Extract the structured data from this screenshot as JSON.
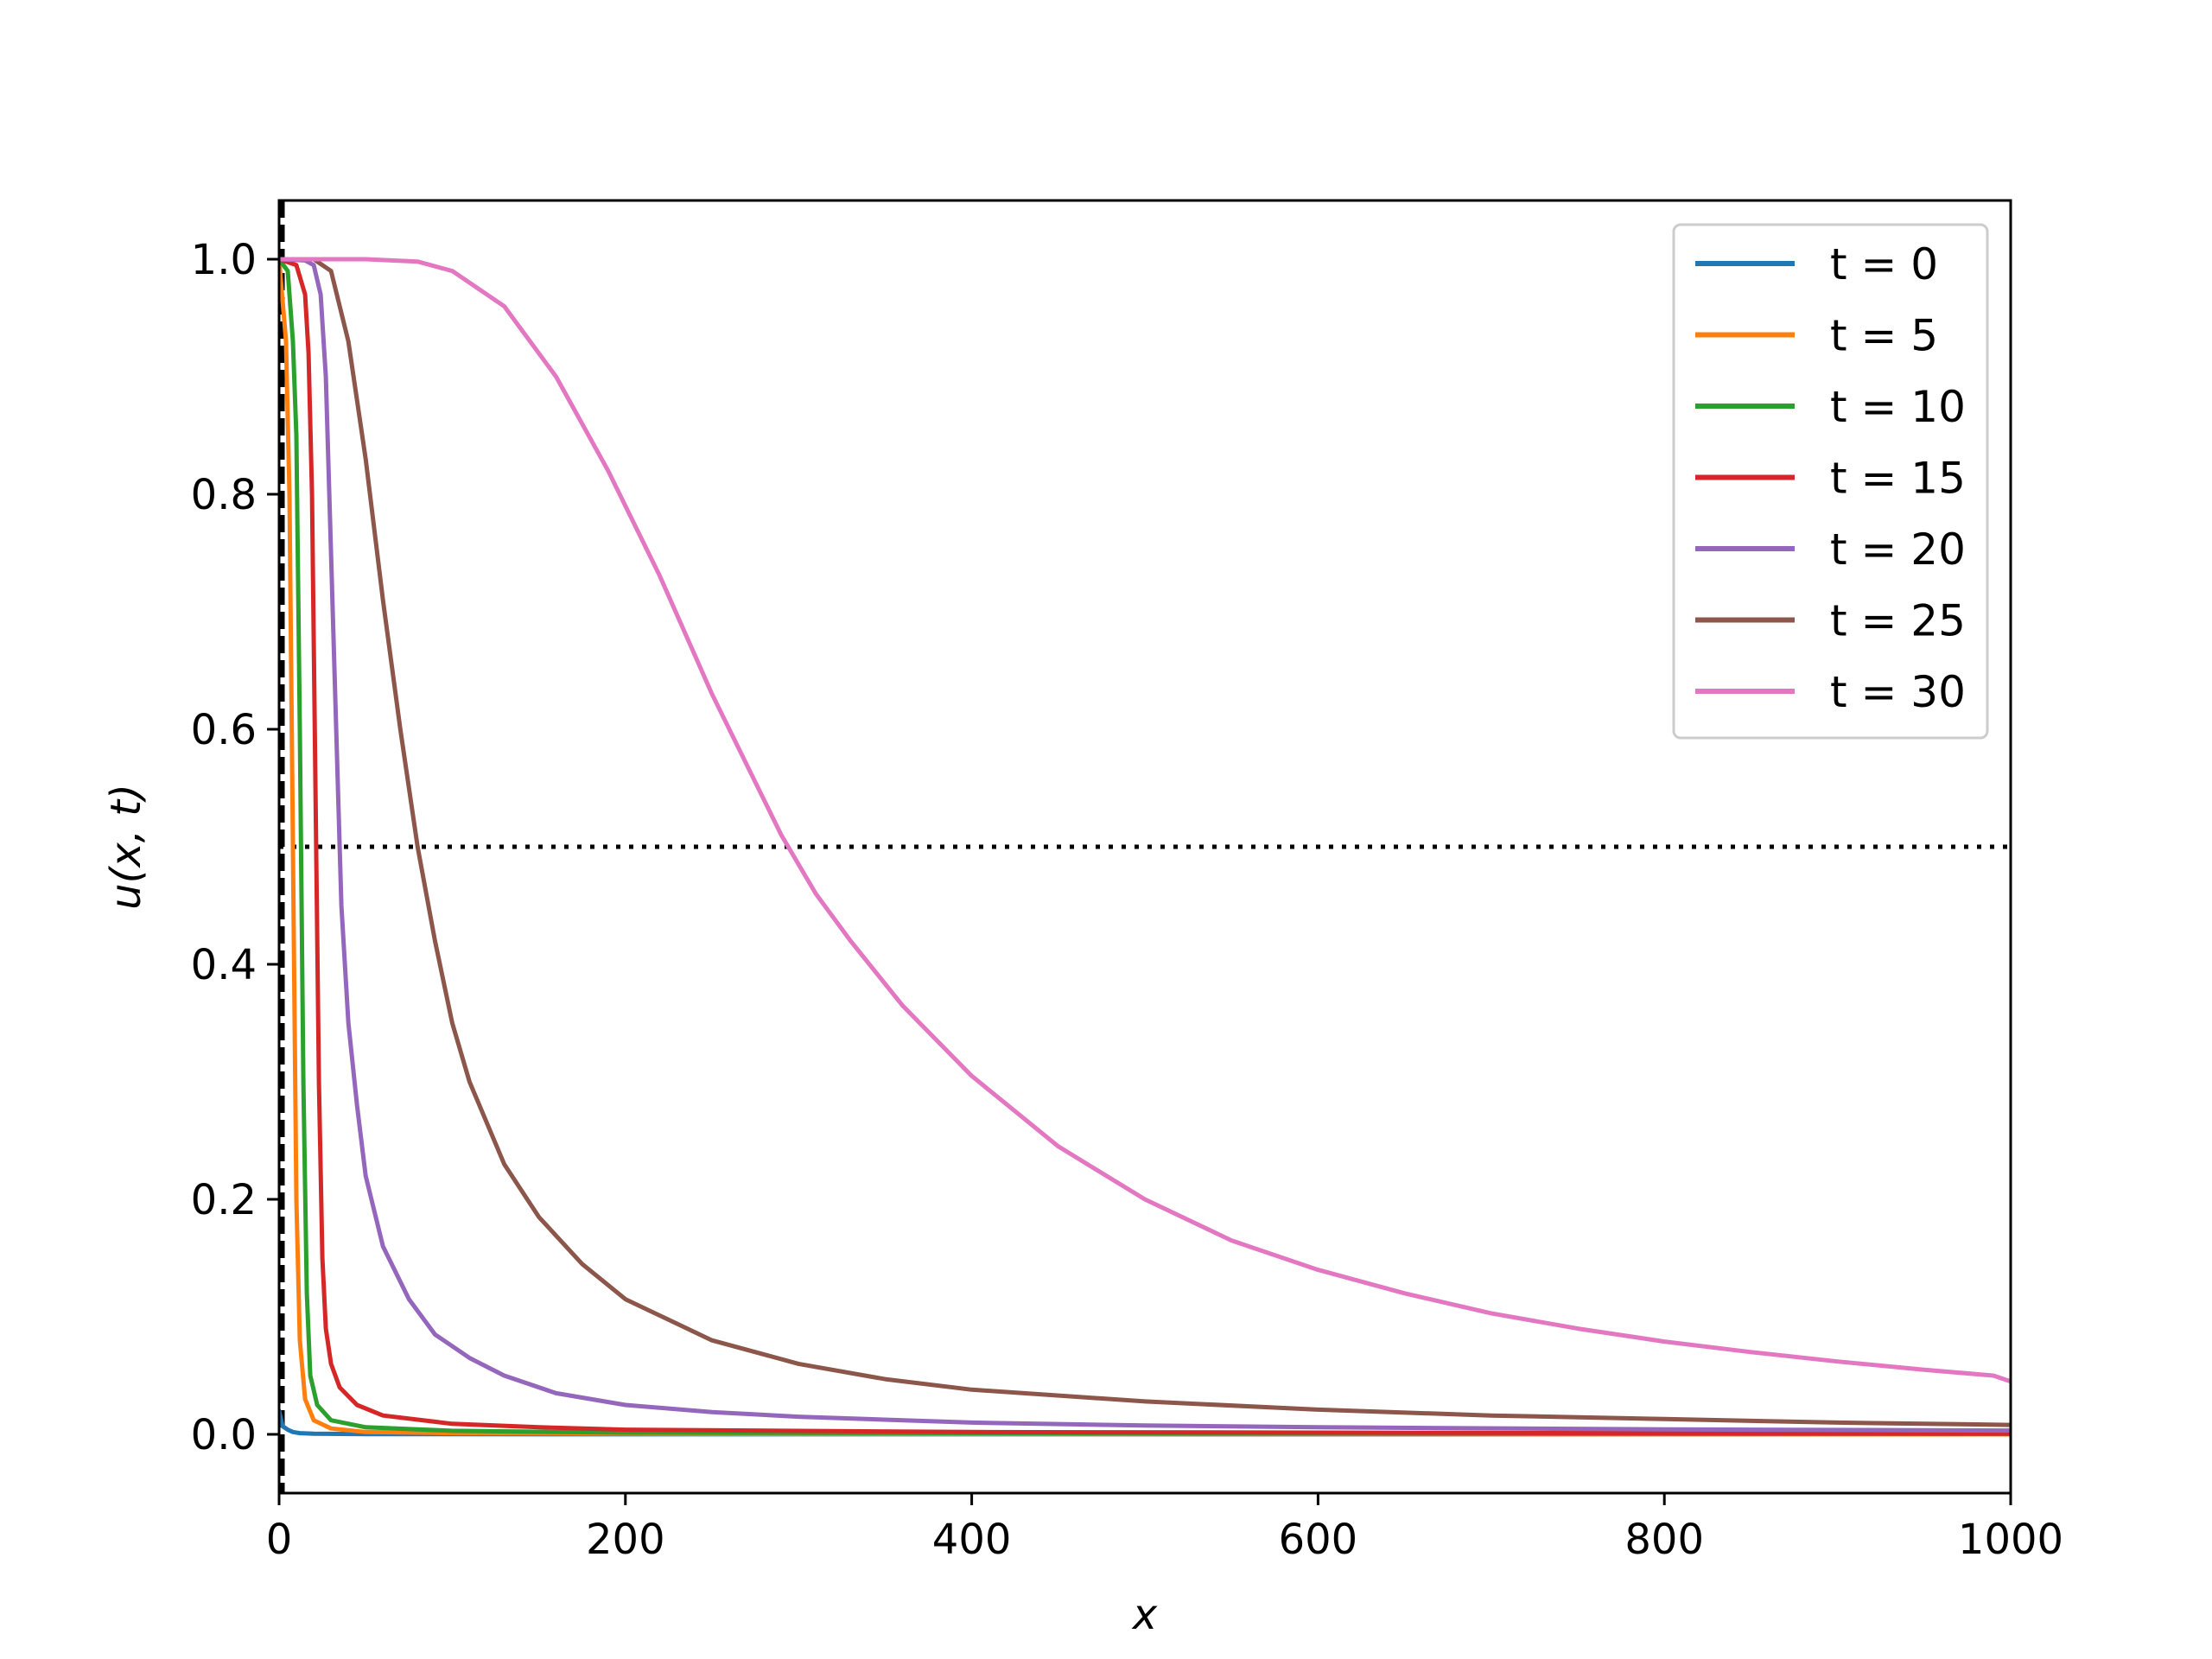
{
  "chart_data": {
    "type": "line",
    "xlabel": "x",
    "ylabel": "u(x, t)",
    "xlim": [
      0,
      1000
    ],
    "ylim": [
      -0.05,
      1.05
    ],
    "x_ticks": [
      0,
      200,
      400,
      600,
      800,
      1000
    ],
    "y_ticks": [
      0.0,
      0.2,
      0.4,
      0.6,
      0.8,
      1.0
    ],
    "x_tick_labels": [
      "0",
      "200",
      "400",
      "600",
      "800",
      "1000"
    ],
    "y_tick_labels": [
      "0.0",
      "0.2",
      "0.4",
      "0.6",
      "0.8",
      "1.0"
    ],
    "grid": false,
    "legend_position": "top-right",
    "reference_lines": [
      {
        "orientation": "horizontal",
        "value": 0.5,
        "style": "dotted",
        "color": "#000000"
      },
      {
        "orientation": "vertical",
        "value": 2,
        "style": "dashed",
        "color": "#000000"
      }
    ],
    "series": [
      {
        "name": "t = 0",
        "color": "#1f77b4",
        "points": [
          [
            0,
            0.02
          ],
          [
            2,
            0.007
          ],
          [
            5,
            0.004
          ],
          [
            8,
            0.002
          ],
          [
            12,
            0.001
          ],
          [
            20,
            0.0005
          ],
          [
            50,
            0.0002
          ],
          [
            200,
            0.0001
          ],
          [
            1000,
            0.0
          ]
        ]
      },
      {
        "name": "t = 5",
        "color": "#ff7f0e",
        "points": [
          [
            0,
            1.0
          ],
          [
            4,
            0.93
          ],
          [
            6,
            0.8
          ],
          [
            8,
            0.5
          ],
          [
            10,
            0.2
          ],
          [
            12,
            0.08
          ],
          [
            15,
            0.03
          ],
          [
            20,
            0.012
          ],
          [
            30,
            0.005
          ],
          [
            50,
            0.002
          ],
          [
            100,
            0.001
          ],
          [
            300,
            0.0003
          ],
          [
            1000,
            0.0
          ]
        ]
      },
      {
        "name": "t = 10",
        "color": "#2ca02c",
        "points": [
          [
            0,
            1.0
          ],
          [
            5,
            0.99
          ],
          [
            8,
            0.93
          ],
          [
            10,
            0.85
          ],
          [
            12,
            0.6
          ],
          [
            14,
            0.3
          ],
          [
            16,
            0.12
          ],
          [
            18,
            0.05
          ],
          [
            22,
            0.025
          ],
          [
            30,
            0.012
          ],
          [
            50,
            0.006
          ],
          [
            100,
            0.003
          ],
          [
            200,
            0.0015
          ],
          [
            500,
            0.0008
          ],
          [
            1000,
            0.0004
          ]
        ]
      },
      {
        "name": "t = 15",
        "color": "#d62728",
        "points": [
          [
            0,
            1.0
          ],
          [
            10,
            0.995
          ],
          [
            15,
            0.97
          ],
          [
            17,
            0.92
          ],
          [
            19,
            0.8
          ],
          [
            21,
            0.55
          ],
          [
            23,
            0.3
          ],
          [
            25,
            0.15
          ],
          [
            27,
            0.09
          ],
          [
            30,
            0.06
          ],
          [
            35,
            0.04
          ],
          [
            45,
            0.025
          ],
          [
            60,
            0.016
          ],
          [
            100,
            0.009
          ],
          [
            150,
            0.006
          ],
          [
            200,
            0.004
          ],
          [
            400,
            0.002
          ],
          [
            700,
            0.0012
          ],
          [
            1000,
            0.0008
          ]
        ]
      },
      {
        "name": "t = 20",
        "color": "#9467bd",
        "points": [
          [
            0,
            1.0
          ],
          [
            15,
            0.999
          ],
          [
            20,
            0.995
          ],
          [
            24,
            0.97
          ],
          [
            27,
            0.9
          ],
          [
            30,
            0.75
          ],
          [
            33,
            0.6
          ],
          [
            36,
            0.45
          ],
          [
            40,
            0.35
          ],
          [
            45,
            0.28
          ],
          [
            50,
            0.22
          ],
          [
            60,
            0.16
          ],
          [
            75,
            0.115
          ],
          [
            90,
            0.085
          ],
          [
            110,
            0.065
          ],
          [
            130,
            0.05
          ],
          [
            160,
            0.035
          ],
          [
            200,
            0.025
          ],
          [
            250,
            0.019
          ],
          [
            300,
            0.015
          ],
          [
            400,
            0.01
          ],
          [
            500,
            0.0075
          ],
          [
            600,
            0.006
          ],
          [
            800,
            0.0042
          ],
          [
            1000,
            0.0032
          ]
        ]
      },
      {
        "name": "t = 25",
        "color": "#8c564b",
        "points": [
          [
            0,
            1.0
          ],
          [
            20,
            1.0
          ],
          [
            30,
            0.99
          ],
          [
            40,
            0.93
          ],
          [
            50,
            0.83
          ],
          [
            60,
            0.71
          ],
          [
            70,
            0.6
          ],
          [
            80,
            0.5
          ],
          [
            90,
            0.42
          ],
          [
            100,
            0.35
          ],
          [
            110,
            0.3
          ],
          [
            130,
            0.23
          ],
          [
            150,
            0.185
          ],
          [
            175,
            0.145
          ],
          [
            200,
            0.115
          ],
          [
            250,
            0.08
          ],
          [
            300,
            0.06
          ],
          [
            350,
            0.047
          ],
          [
            400,
            0.038
          ],
          [
            500,
            0.028
          ],
          [
            600,
            0.021
          ],
          [
            700,
            0.016
          ],
          [
            800,
            0.013
          ],
          [
            900,
            0.01
          ],
          [
            1000,
            0.008
          ]
        ]
      },
      {
        "name": "t = 30",
        "color": "#e377c2",
        "points": [
          [
            0,
            1.0
          ],
          [
            50,
            1.0
          ],
          [
            80,
            0.998
          ],
          [
            100,
            0.99
          ],
          [
            130,
            0.96
          ],
          [
            160,
            0.9
          ],
          [
            190,
            0.82
          ],
          [
            220,
            0.73
          ],
          [
            250,
            0.63
          ],
          [
            270,
            0.57
          ],
          [
            290,
            0.51
          ],
          [
            310,
            0.46
          ],
          [
            330,
            0.42
          ],
          [
            360,
            0.365
          ],
          [
            400,
            0.305
          ],
          [
            450,
            0.245
          ],
          [
            500,
            0.2
          ],
          [
            550,
            0.165
          ],
          [
            600,
            0.14
          ],
          [
            650,
            0.12
          ],
          [
            700,
            0.103
          ],
          [
            750,
            0.09
          ],
          [
            800,
            0.079
          ],
          [
            850,
            0.07
          ],
          [
            900,
            0.062
          ],
          [
            950,
            0.055
          ],
          [
            990,
            0.05
          ],
          [
            1000,
            0.045
          ]
        ]
      }
    ]
  }
}
